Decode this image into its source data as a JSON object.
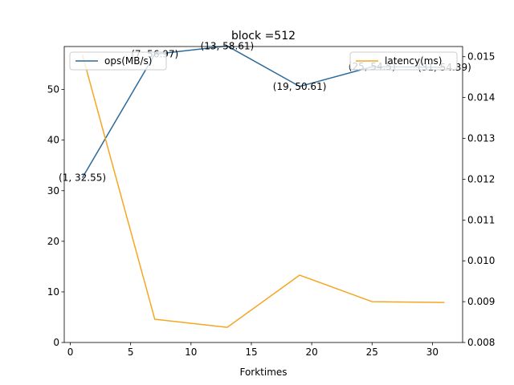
{
  "chart_data": {
    "type": "line",
    "title": "block =512",
    "xlabel": "Forktimes",
    "ylabel": "",
    "ylabel_right": "",
    "x": [
      1,
      7,
      13,
      19,
      25,
      31
    ],
    "xlim": [
      -0.5,
      32.5
    ],
    "ylim": [
      0,
      58.5
    ],
    "ylim_right": [
      0.008,
      0.01525
    ],
    "xticks": [
      0,
      5,
      10,
      15,
      20,
      25,
      30
    ],
    "yticks": [
      0,
      10,
      20,
      30,
      40,
      50
    ],
    "yticks_right": [
      0.008,
      0.009,
      0.01,
      0.011,
      0.012,
      0.013,
      0.014,
      0.015
    ],
    "series": [
      {
        "name": "ops(MB/s)",
        "axis": "left",
        "color": "#2b6a9c",
        "values": [
          32.55,
          56.97,
          58.61,
          50.61,
          54.5,
          54.4
        ]
      },
      {
        "name": "latency(ms)",
        "axis": "right",
        "color": "#f5a623",
        "values": [
          0.01505,
          0.00857,
          0.00837,
          0.00965,
          0.009,
          0.00898
        ]
      }
    ],
    "annotations": [
      {
        "text": "(1, 32.55)",
        "x": 1,
        "y": 32.55
      },
      {
        "text": "(7, 56.97)",
        "x": 7,
        "y": 56.97
      },
      {
        "text": "(13, 58.61)",
        "x": 13,
        "y": 58.61
      },
      {
        "text": "(19, 50.61)",
        "x": 19,
        "y": 50.61
      },
      {
        "text": "(25, 54.5)",
        "x": 25,
        "y": 54.5
      },
      {
        "text": "(31, 54.39)",
        "x": 31,
        "y": 54.4
      }
    ],
    "legends": [
      "top-left",
      "top-right"
    ],
    "grid": false
  }
}
